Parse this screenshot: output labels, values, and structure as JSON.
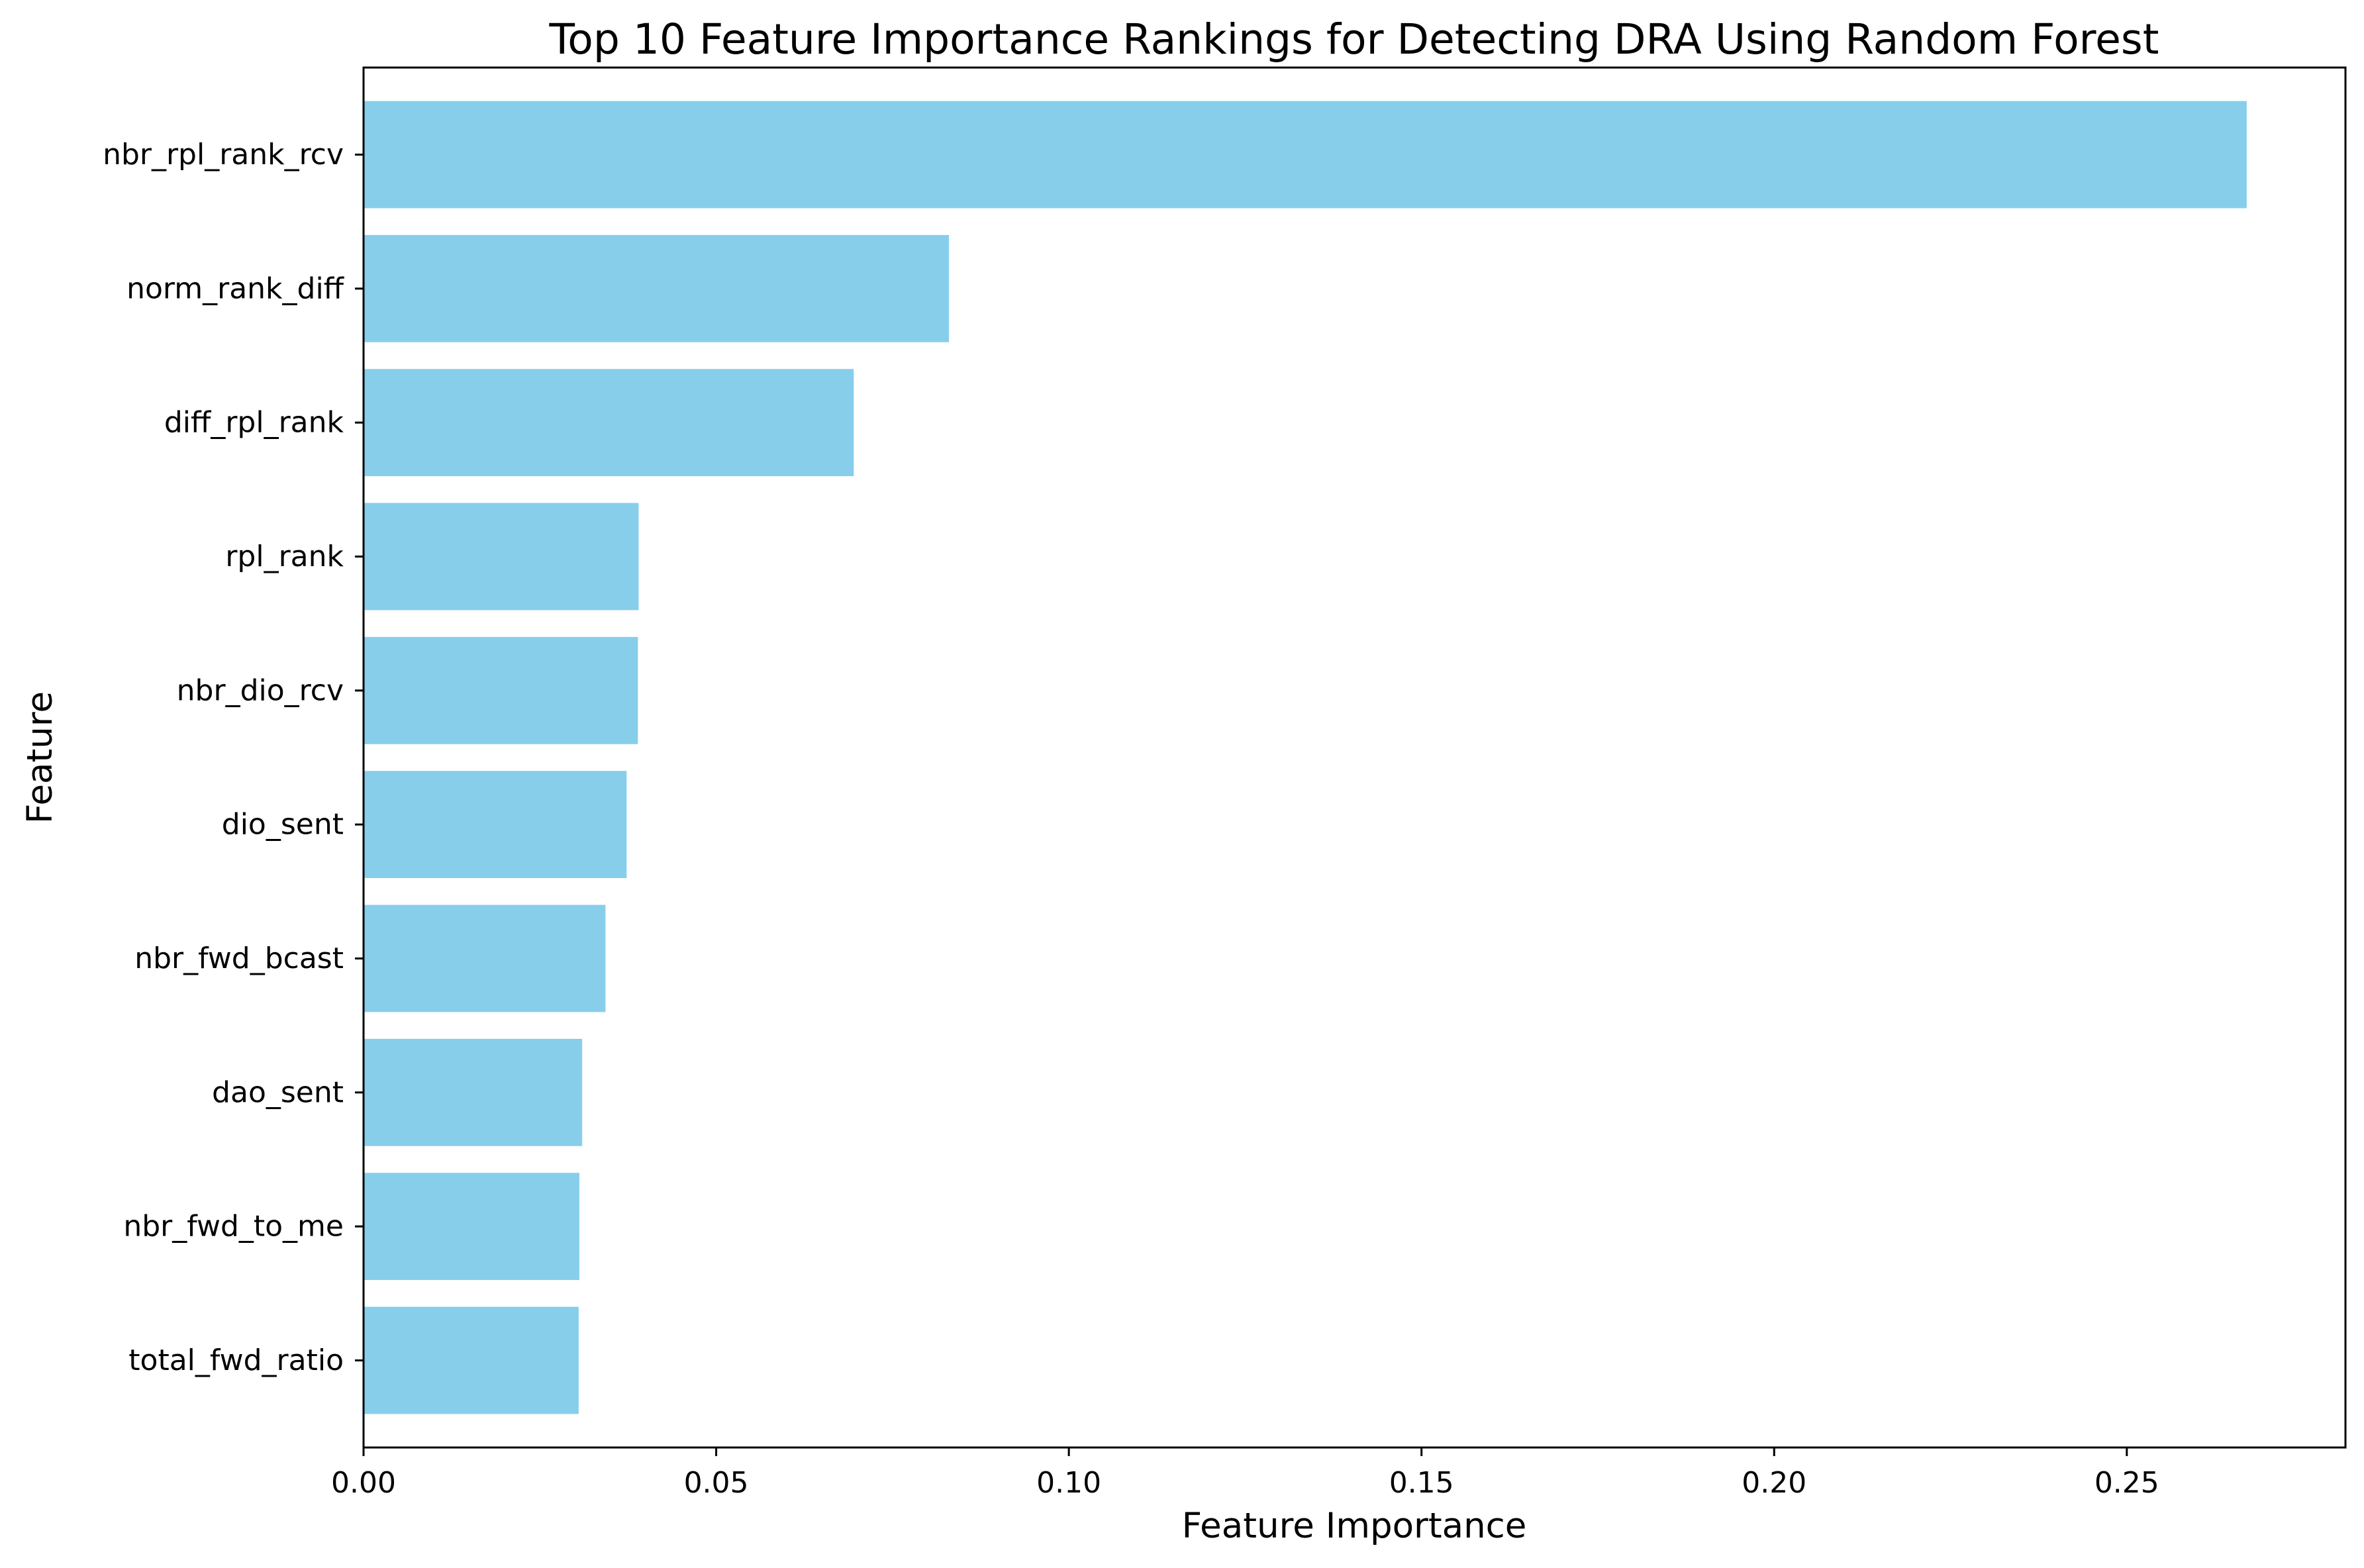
{
  "chart_data": {
    "type": "bar",
    "orientation": "horizontal",
    "title": "Top 10 Feature Importance Rankings for Detecting DRA Using Random Forest",
    "xlabel": "Feature Importance",
    "ylabel": "Feature",
    "categories": [
      "nbr_rpl_rank_rcv",
      "norm_rank_diff",
      "diff_rpl_rank",
      "rpl_rank",
      "nbr_dio_rcv",
      "dio_sent",
      "nbr_fwd_bcast",
      "dao_sent",
      "nbr_fwd_to_me",
      "total_fwd_ratio"
    ],
    "values": [
      0.267,
      0.083,
      0.0695,
      0.039,
      0.0389,
      0.0373,
      0.0343,
      0.031,
      0.0306,
      0.0305
    ],
    "xlim": [
      0,
      0.281
    ],
    "xticks": [
      0.0,
      0.05,
      0.1,
      0.15,
      0.2,
      0.25
    ],
    "xtick_labels": [
      "0.00",
      "0.05",
      "0.10",
      "0.15",
      "0.20",
      "0.25"
    ],
    "bar_color": "#87ceeb",
    "grid": false,
    "legend": null
  }
}
